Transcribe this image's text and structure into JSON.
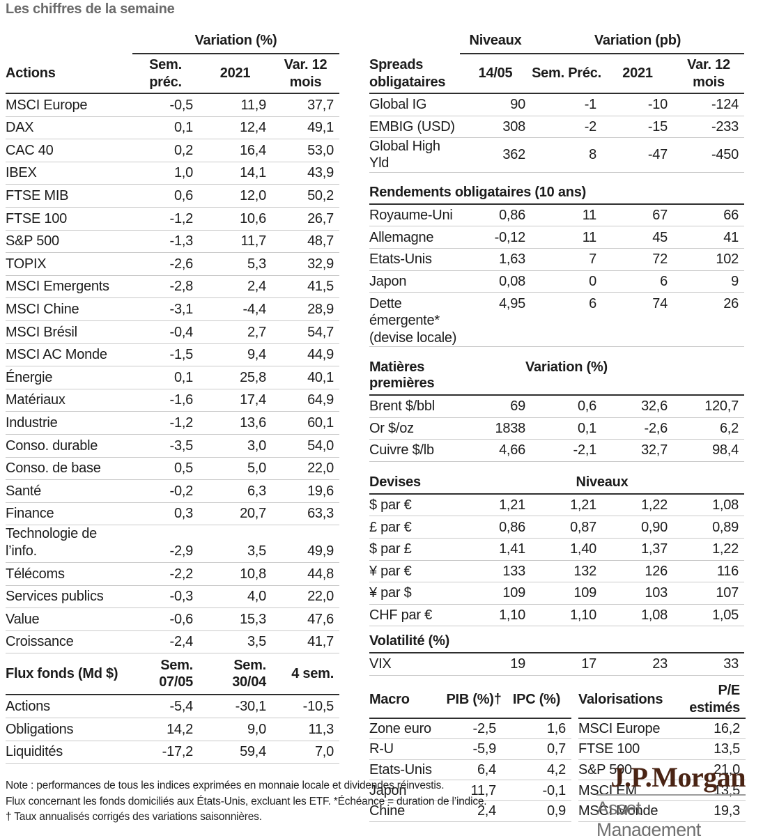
{
  "title": "Les chiffres de la semaine",
  "colors": {
    "logo_brown": "#4a2414",
    "title_gray": "#6b6b6b",
    "text": "#1c1c1c",
    "line_light": "#c9c9c9",
    "line_dark": "#2e2e2e"
  },
  "left": {
    "variation_header": "Variation (%)",
    "actions": {
      "header": [
        "Actions",
        "Sem. préc.",
        "2021",
        "Var. 12\nmois"
      ],
      "rows": [
        [
          "MSCI Europe",
          "-0,5",
          "11,9",
          "37,7"
        ],
        [
          "DAX",
          "0,1",
          "12,4",
          "49,1"
        ],
        [
          "CAC 40",
          "0,2",
          "16,4",
          "53,0"
        ],
        [
          "IBEX",
          "1,0",
          "14,1",
          "43,9"
        ],
        [
          "FTSE MIB",
          "0,6",
          "12,0",
          "50,2"
        ],
        [
          "FTSE 100",
          "-1,2",
          "10,6",
          "26,7"
        ],
        [
          "S&P 500",
          "-1,3",
          "11,7",
          "48,7"
        ],
        [
          "TOPIX",
          "-2,6",
          "5,3",
          "32,9"
        ],
        [
          "MSCI Emergents",
          "-2,8",
          "2,4",
          "41,5"
        ],
        [
          "MSCI Chine",
          "-3,1",
          "-4,4",
          "28,9"
        ],
        [
          "MSCI Brésil",
          "-0,4",
          "2,7",
          "54,7"
        ],
        [
          "MSCI AC Monde",
          "-1,5",
          "9,4",
          "44,9"
        ],
        [
          "Énergie",
          "0,1",
          "25,8",
          "40,1"
        ],
        [
          "Matériaux",
          "-1,6",
          "17,4",
          "64,9"
        ],
        [
          "Industrie",
          "-1,2",
          "13,6",
          "60,1"
        ],
        [
          "Conso. durable",
          "-3,5",
          "3,0",
          "54,0"
        ],
        [
          "Conso. de base",
          "0,5",
          "5,0",
          "22,0"
        ],
        [
          "Santé",
          "-0,2",
          "6,3",
          "19,6"
        ],
        [
          "Finance",
          "0,3",
          "20,7",
          "63,3"
        ],
        [
          "Technologie de\nl’info.",
          "-2,9",
          "3,5",
          "49,9"
        ],
        [
          "Télécoms",
          "-2,2",
          "10,8",
          "44,8"
        ],
        [
          "Services publics",
          "-0,3",
          "4,0",
          "22,0"
        ],
        [
          "Value",
          "-0,6",
          "15,3",
          "47,6"
        ],
        [
          "Croissance",
          "-2,4",
          "3,5",
          "41,7"
        ]
      ]
    },
    "flux": {
      "header": [
        "Flux fonds (Md $)",
        "Sem.\n07/05",
        "Sem.\n30/04",
        "4 sem."
      ],
      "rows": [
        [
          "Actions",
          "-5,4",
          "-30,1",
          "-10,5"
        ],
        [
          "Obligations",
          "14,2",
          "9,0",
          "11,3"
        ],
        [
          "Liquidités",
          "-17,2",
          "59,4",
          "7,0"
        ]
      ]
    }
  },
  "right": {
    "spreads": {
      "group_headers": {
        "niveaux": "Niveaux",
        "variation": "Variation (pb)"
      },
      "header": [
        "Spreads\nobligataires",
        "14/05",
        "Sem. Préc.",
        "2021",
        "Var. 12\nmois"
      ],
      "rows": [
        [
          "Global IG",
          "90",
          "-1",
          "-10",
          "-124"
        ],
        [
          "EMBIG (USD)",
          "308",
          "-2",
          "-15",
          "-233"
        ],
        [
          "Global High Yld",
          "362",
          "8",
          "-47",
          "-450"
        ]
      ]
    },
    "rendements": {
      "title": "Rendements obligataires (10 ans)",
      "rows": [
        [
          "Royaume-Uni",
          "0,86",
          "11",
          "67",
          "66"
        ],
        [
          "Allemagne",
          "-0,12",
          "11",
          "45",
          "41"
        ],
        [
          "Etats-Unis",
          "1,63",
          "7",
          "72",
          "102"
        ],
        [
          "Japon",
          "0,08",
          "0",
          "6",
          "9"
        ],
        [
          "Dette\némergente*\n(devise locale)",
          "4,95",
          "6",
          "74",
          "26"
        ]
      ]
    },
    "matieres": {
      "title": "Matières premières",
      "subtitle": "Variation (%)",
      "rows": [
        [
          "Brent $/bbl",
          "69",
          "0,6",
          "32,6",
          "120,7"
        ],
        [
          "Or $/oz",
          "1838",
          "0,1",
          "-2,6",
          "6,2"
        ],
        [
          "Cuivre $/lb",
          "4,66",
          "-2,1",
          "32,7",
          "98,4"
        ]
      ]
    },
    "devises": {
      "title": "Devises",
      "subtitle": "Niveaux",
      "rows": [
        [
          "$ par €",
          "1,21",
          "1,21",
          "1,22",
          "1,08"
        ],
        [
          "£ par €",
          "0,86",
          "0,87",
          "0,90",
          "0,89"
        ],
        [
          "$ par £",
          "1,41",
          "1,40",
          "1,37",
          "1,22"
        ],
        [
          "¥ par €",
          "133",
          "132",
          "126",
          "116"
        ],
        [
          "¥ par $",
          "109",
          "109",
          "103",
          "107"
        ],
        [
          "CHF par €",
          "1,10",
          "1,10",
          "1,08",
          "1,05"
        ]
      ]
    },
    "volatilite": {
      "title": "Volatilité (%)",
      "rows": [
        [
          "VIX",
          "19",
          "17",
          "23",
          "33"
        ]
      ]
    },
    "macro": {
      "header": [
        "Macro",
        "PIB (%)†",
        "IPC (%)"
      ],
      "rows": [
        [
          "Zone euro",
          "-2,5",
          "1,6"
        ],
        [
          "R-U",
          "-5,9",
          "0,7"
        ],
        [
          "Etats-Unis",
          "6,4",
          "4,2"
        ],
        [
          "Japon",
          "11,7",
          "-0,1"
        ],
        [
          "Chine",
          "2,4",
          "0,9"
        ]
      ]
    },
    "valorisations": {
      "header": [
        "Valorisations",
        "P/E\nestimés"
      ],
      "rows": [
        [
          "MSCI Europe",
          "16,2"
        ],
        [
          "FTSE 100",
          "13,5"
        ],
        [
          "S&P 500",
          "21,0"
        ],
        [
          "MSCI EM",
          "13,5"
        ],
        [
          "MSCI Monde",
          "19,3"
        ]
      ]
    }
  },
  "footer": {
    "notes": [
      "Note : performances de tous les indices exprimées en monnaie locale et dividendes réinvestis.",
      "Flux concernant les fonds domiciliés aux États-Unis, excluant les ETF. *Échéance = duration de l’indice.",
      "† Taux annualisés corrigés des variations saisonnières."
    ],
    "logo": {
      "primary": "J.P.Morgan",
      "secondary": "Asset Management"
    }
  }
}
